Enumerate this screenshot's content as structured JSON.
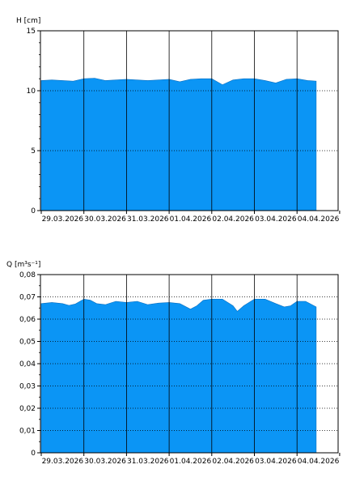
{
  "chart_data": [
    {
      "type": "area",
      "ylabel": "H [cm]",
      "ylim": [
        0,
        15
      ],
      "yticks": [
        0,
        5,
        10,
        15
      ],
      "ytick_labels": [
        "0",
        "5",
        "10",
        "15"
      ],
      "x_range_days": [
        "29.03.2026",
        "04.04.2026"
      ],
      "xtick_labels": [
        "29.03.2026",
        "30.03.2026",
        "31.03.2026",
        "01.04.2026",
        "02.04.2026",
        "03.04.2026",
        "04.04.2026"
      ],
      "fill_color": "#0b95f5",
      "grid": "vertical solid at day boundaries, horizontal dotted at y ticks",
      "series": [
        {
          "x": [
            0,
            0.25,
            0.5,
            0.75,
            1.0,
            1.25,
            1.5,
            1.75,
            2.0,
            2.25,
            2.5,
            2.75,
            3.0,
            3.25,
            3.5,
            3.75,
            4.0,
            4.25,
            4.5,
            4.75,
            5.0,
            5.25,
            5.5,
            5.75,
            6.0,
            6.25,
            6.45
          ],
          "y": [
            10.85,
            10.9,
            10.85,
            10.8,
            11.0,
            11.05,
            10.85,
            10.9,
            10.95,
            10.9,
            10.85,
            10.9,
            10.95,
            10.75,
            10.95,
            11.0,
            11.0,
            10.5,
            10.9,
            11.0,
            11.0,
            10.85,
            10.65,
            10.95,
            11.0,
            10.85,
            10.8
          ]
        }
      ]
    },
    {
      "type": "area",
      "ylabel": "Q [m³s⁻¹]",
      "ylim": [
        0,
        0.08
      ],
      "yticks": [
        0,
        0.01,
        0.02,
        0.03,
        0.04,
        0.05,
        0.06,
        0.07,
        0.08
      ],
      "ytick_labels": [
        "0",
        "0,01",
        "0,02",
        "0,03",
        "0,04",
        "0,05",
        "0,06",
        "0,07",
        "0,08"
      ],
      "xtick_labels": [
        "29.03.2026",
        "30.03.2026",
        "31.03.2026",
        "01.04.2026",
        "02.04.2026",
        "03.04.2026",
        "04.04.2026"
      ],
      "fill_color": "#0b95f5",
      "grid": "vertical solid at day boundaries, horizontal dotted at y ticks",
      "series": [
        {
          "x": [
            0,
            0.25,
            0.5,
            0.65,
            0.8,
            1.0,
            1.15,
            1.3,
            1.5,
            1.75,
            2.0,
            2.25,
            2.5,
            2.75,
            3.0,
            3.25,
            3.5,
            3.65,
            3.8,
            4.0,
            4.25,
            4.5,
            4.6,
            4.75,
            5.0,
            5.25,
            5.5,
            5.7,
            5.85,
            6.0,
            6.2,
            6.45
          ],
          "y": [
            0.067,
            0.0675,
            0.067,
            0.0662,
            0.0668,
            0.069,
            0.0685,
            0.067,
            0.0665,
            0.068,
            0.0675,
            0.068,
            0.0665,
            0.0672,
            0.0675,
            0.067,
            0.0645,
            0.066,
            0.0685,
            0.069,
            0.069,
            0.066,
            0.0635,
            0.066,
            0.069,
            0.069,
            0.067,
            0.0655,
            0.066,
            0.068,
            0.068,
            0.0655
          ]
        }
      ]
    }
  ]
}
